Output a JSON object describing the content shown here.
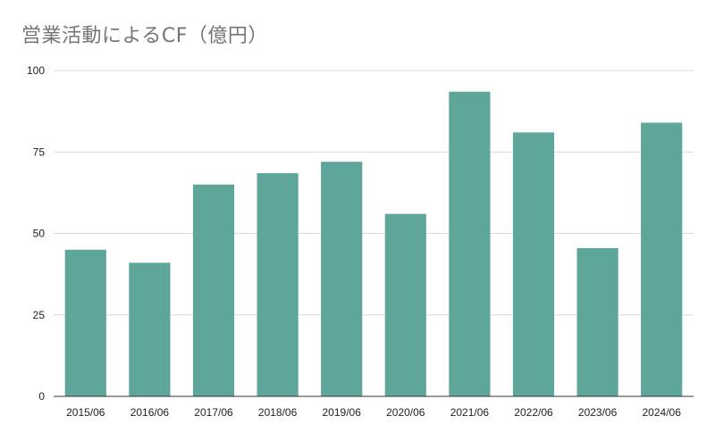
{
  "chart_data": {
    "type": "bar",
    "title": "営業活動によるCF（億円）",
    "xlabel": "",
    "ylabel": "",
    "categories": [
      "2015/06",
      "2016/06",
      "2017/06",
      "2018/06",
      "2019/06",
      "2020/06",
      "2021/06",
      "2022/06",
      "2023/06",
      "2024/06"
    ],
    "values": [
      45,
      41,
      65,
      68.5,
      72,
      56,
      93.5,
      81,
      45.5,
      84
    ],
    "ylim": [
      0,
      100
    ],
    "yticks": [
      0,
      25,
      50,
      75,
      100
    ],
    "grid": true,
    "legend": "none",
    "colors": {
      "bar": "#5fa69a",
      "grid": "#d9d9d9",
      "axis": "#333333"
    }
  }
}
